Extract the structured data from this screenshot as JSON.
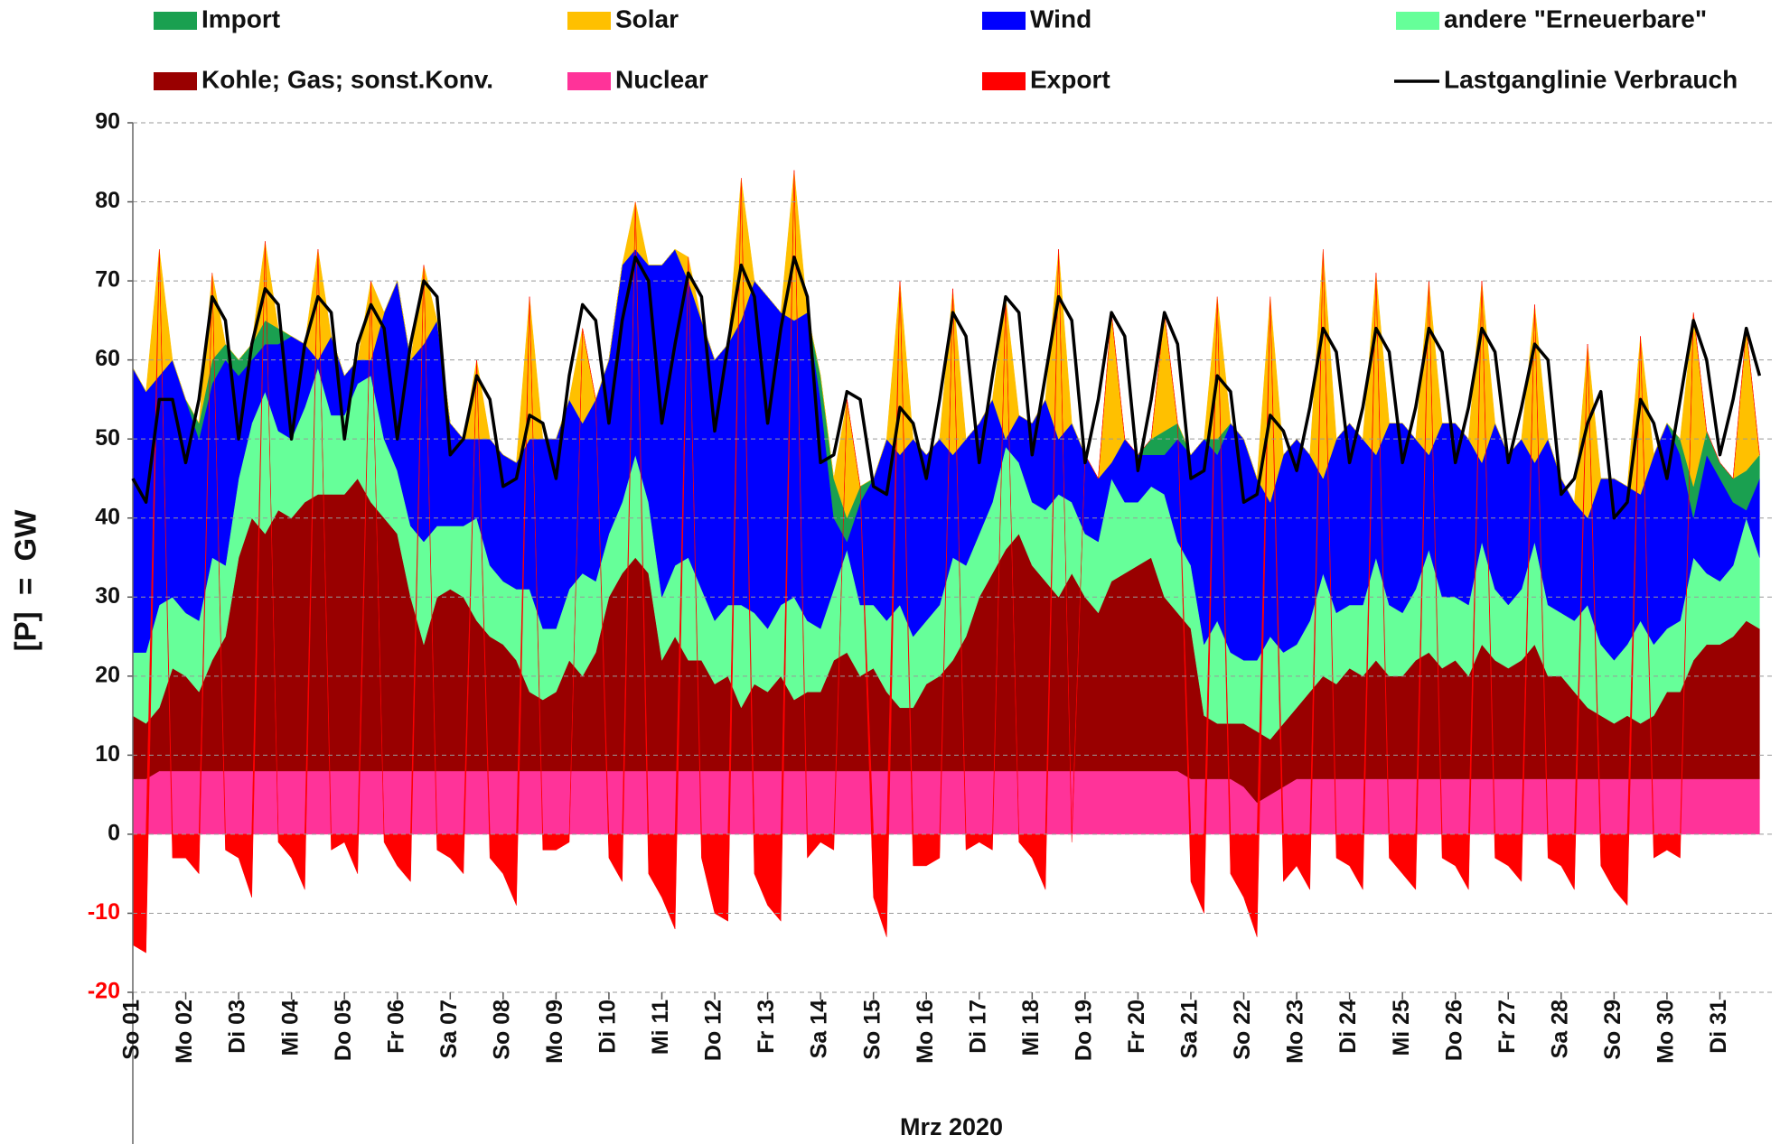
{
  "chart_data": {
    "type": "area",
    "x_label": "Mrz 2020",
    "y_label": "[P]  =  GW",
    "ylim": [
      -20,
      90
    ],
    "yticks": [
      -20,
      -10,
      0,
      10,
      20,
      30,
      40,
      50,
      60,
      70,
      80,
      90
    ],
    "grid": true,
    "categories": [
      "So 01",
      null,
      null,
      null,
      "Mo 02",
      null,
      null,
      null,
      "Di 03",
      null,
      null,
      null,
      "Mi 04",
      null,
      null,
      null,
      "Do 05",
      null,
      null,
      null,
      "Fr 06",
      null,
      null,
      null,
      "Sa 07",
      null,
      null,
      null,
      "So 08",
      null,
      null,
      null,
      "Mo 09",
      null,
      null,
      null,
      "Di 10",
      null,
      null,
      null,
      "Mi 11",
      null,
      null,
      null,
      "Do 12",
      null,
      null,
      null,
      "Fr 13",
      null,
      null,
      null,
      "Sa 14",
      null,
      null,
      null,
      "So 15",
      null,
      null,
      null,
      "Mo 16",
      null,
      null,
      null,
      "Di 17",
      null,
      null,
      null,
      "Mi 18",
      null,
      null,
      null,
      "Do 19",
      null,
      null,
      null,
      "Fr 20",
      null,
      null,
      null,
      "Sa 21",
      null,
      null,
      null,
      "So 22",
      null,
      null,
      null,
      "Mo 23",
      null,
      null,
      null,
      "Di 24",
      null,
      null,
      null,
      "Mi 25",
      null,
      null,
      null,
      "Do 26",
      null,
      null,
      null,
      "Fr 27",
      null,
      null,
      null,
      "Sa 28",
      null,
      null,
      null,
      "So 29",
      null,
      null,
      null,
      "Mo 30",
      null,
      null,
      null,
      "Di 31",
      null,
      null,
      null
    ],
    "series": [
      {
        "name": "Nuclear",
        "color": "#ff3399",
        "values": [
          7,
          7,
          8,
          8,
          8,
          8,
          8,
          8,
          8,
          8,
          8,
          8,
          8,
          8,
          8,
          8,
          8,
          8,
          8,
          8,
          8,
          8,
          8,
          8,
          8,
          8,
          8,
          8,
          8,
          8,
          8,
          8,
          8,
          8,
          8,
          8,
          8,
          8,
          8,
          8,
          8,
          8,
          8,
          8,
          8,
          8,
          8,
          8,
          8,
          8,
          8,
          8,
          8,
          8,
          8,
          8,
          8,
          8,
          8,
          8,
          8,
          8,
          8,
          8,
          8,
          8,
          8,
          8,
          8,
          8,
          8,
          8,
          8,
          8,
          8,
          8,
          8,
          8,
          8,
          8,
          7,
          7,
          7,
          7,
          6,
          4,
          5,
          6,
          7,
          7,
          7,
          7,
          7,
          7,
          7,
          7,
          7,
          7,
          7,
          7,
          7,
          7,
          7,
          7,
          7,
          7,
          7,
          7,
          7,
          7,
          7,
          7,
          7,
          7,
          7,
          7,
          7,
          7,
          7,
          7,
          7,
          7,
          7,
          7
        ]
      },
      {
        "name": "Kohle; Gas; sonst.Konv.",
        "color": "#990000",
        "values": [
          8,
          7,
          8,
          13,
          12,
          10,
          14,
          17,
          27,
          32,
          30,
          33,
          32,
          34,
          35,
          35,
          35,
          37,
          34,
          32,
          30,
          22,
          16,
          22,
          23,
          22,
          19,
          17,
          16,
          14,
          10,
          9,
          10,
          14,
          12,
          15,
          22,
          25,
          27,
          25,
          14,
          17,
          14,
          14,
          11,
          12,
          8,
          11,
          10,
          12,
          9,
          10,
          10,
          14,
          15,
          12,
          13,
          10,
          8,
          8,
          11,
          12,
          14,
          17,
          22,
          25,
          28,
          30,
          26,
          24,
          22,
          25,
          22,
          20,
          24,
          25,
          26,
          27,
          22,
          20,
          19,
          8,
          7,
          7,
          8,
          9,
          7,
          8,
          9,
          11,
          13,
          12,
          14,
          13,
          15,
          13,
          13,
          15,
          16,
          14,
          15,
          13,
          17,
          15,
          14,
          15,
          17,
          13,
          13,
          11,
          9,
          8,
          7,
          8,
          7,
          8,
          11,
          11,
          15,
          17,
          17,
          18,
          20,
          19
        ]
      },
      {
        "name": "andere \"Erneuerbare\"",
        "color": "#66ff99",
        "values": [
          8,
          9,
          13,
          9,
          8,
          9,
          13,
          9,
          10,
          12,
          18,
          10,
          10,
          12,
          16,
          10,
          10,
          12,
          16,
          10,
          8,
          9,
          13,
          9,
          8,
          9,
          13,
          9,
          8,
          9,
          13,
          9,
          8,
          9,
          13,
          9,
          8,
          9,
          13,
          9,
          8,
          9,
          13,
          9,
          8,
          9,
          13,
          9,
          8,
          9,
          13,
          9,
          8,
          9,
          13,
          9,
          8,
          9,
          13,
          9,
          8,
          9,
          13,
          9,
          8,
          9,
          13,
          9,
          8,
          9,
          13,
          9,
          8,
          9,
          13,
          9,
          8,
          9,
          13,
          9,
          8,
          9,
          13,
          9,
          8,
          9,
          13,
          9,
          8,
          9,
          13,
          9,
          8,
          9,
          13,
          9,
          8,
          9,
          13,
          9,
          8,
          9,
          13,
          9,
          8,
          9,
          13,
          9,
          8,
          9,
          13,
          9,
          8,
          9,
          13,
          9,
          8,
          9,
          13,
          9,
          8,
          9,
          13,
          9
        ]
      },
      {
        "name": "Wind",
        "color": "#0000ff",
        "values": [
          36,
          33,
          29,
          30,
          27,
          23,
          22,
          26,
          13,
          8,
          6,
          11,
          13,
          8,
          1,
          10,
          5,
          3,
          2,
          16,
          24,
          21,
          25,
          26,
          13,
          11,
          10,
          16,
          16,
          16,
          19,
          24,
          24,
          24,
          19,
          23,
          22,
          30,
          26,
          30,
          42,
          40,
          35,
          34,
          33,
          33,
          36,
          42,
          42,
          37,
          35,
          39,
          29,
          9,
          1,
          13,
          16,
          23,
          19,
          25,
          21,
          21,
          13,
          16,
          14,
          13,
          1,
          6,
          10,
          14,
          7,
          10,
          10,
          8,
          2,
          8,
          6,
          4,
          5,
          13,
          14,
          26,
          21,
          29,
          28,
          23,
          17,
          25,
          26,
          21,
          12,
          22,
          23,
          21,
          13,
          23,
          24,
          19,
          12,
          22,
          22,
          21,
          10,
          21,
          19,
          19,
          10,
          21,
          17,
          15,
          11,
          21,
          23,
          20,
          16,
          24,
          26,
          21,
          5,
          15,
          13,
          8,
          1,
          10
        ]
      },
      {
        "name": "Import",
        "color": "#1aa050",
        "values": [
          0,
          0,
          0,
          0,
          0,
          2,
          3,
          2,
          2,
          2,
          3,
          2,
          0,
          0,
          0,
          0,
          0,
          0,
          0,
          0,
          0,
          0,
          0,
          0,
          0,
          0,
          0,
          0,
          0,
          0,
          0,
          0,
          0,
          0,
          0,
          0,
          0,
          0,
          0,
          0,
          0,
          0,
          0,
          0,
          0,
          0,
          0,
          0,
          0,
          0,
          0,
          0,
          3,
          5,
          3,
          2,
          0,
          0,
          0,
          0,
          0,
          0,
          0,
          0,
          0,
          0,
          0,
          0,
          0,
          0,
          0,
          0,
          0,
          0,
          0,
          0,
          0,
          2,
          3,
          2,
          0,
          0,
          2,
          0,
          0,
          0,
          0,
          0,
          0,
          0,
          0,
          0,
          0,
          0,
          0,
          0,
          0,
          0,
          0,
          0,
          0,
          0,
          0,
          0,
          0,
          0,
          0,
          0,
          0,
          0,
          0,
          0,
          0,
          0,
          0,
          0,
          0,
          2,
          4,
          3,
          2,
          3,
          5,
          3
        ]
      },
      {
        "name": "Solar",
        "color": "#ffc000",
        "values": [
          0,
          0,
          16,
          0,
          0,
          0,
          11,
          0,
          0,
          0,
          10,
          0,
          0,
          0,
          14,
          0,
          0,
          0,
          10,
          0,
          0,
          0,
          10,
          0,
          0,
          0,
          10,
          0,
          0,
          0,
          18,
          0,
          0,
          0,
          12,
          0,
          0,
          0,
          6,
          0,
          0,
          0,
          3,
          0,
          0,
          0,
          18,
          0,
          0,
          0,
          19,
          0,
          0,
          0,
          15,
          0,
          0,
          0,
          22,
          0,
          0,
          0,
          21,
          0,
          0,
          0,
          18,
          0,
          0,
          0,
          24,
          0,
          0,
          0,
          19,
          0,
          0,
          0,
          15,
          0,
          0,
          0,
          18,
          0,
          0,
          0,
          26,
          0,
          0,
          0,
          29,
          0,
          0,
          0,
          23,
          0,
          0,
          0,
          22,
          0,
          0,
          0,
          23,
          0,
          0,
          0,
          20,
          0,
          0,
          0,
          22,
          0,
          0,
          0,
          20,
          0,
          0,
          0,
          22,
          0,
          0,
          0,
          18,
          0
        ]
      },
      {
        "name": "Export",
        "color": "#ff0000",
        "values": [
          -14,
          -15,
          0,
          -3,
          -3,
          -5,
          0,
          -2,
          -3,
          -8,
          0,
          -1,
          -3,
          -7,
          0,
          -2,
          -1,
          -5,
          0,
          -1,
          -4,
          -6,
          0,
          -2,
          -3,
          -5,
          0,
          -3,
          -5,
          -9,
          0,
          -2,
          -2,
          -1,
          0,
          0,
          -3,
          -6,
          0,
          -5,
          -8,
          -12,
          0,
          -3,
          -10,
          -11,
          0,
          -5,
          -9,
          -11,
          0,
          -3,
          -1,
          -2,
          0,
          0,
          -8,
          -13,
          0,
          -4,
          -4,
          -3,
          0,
          -2,
          -1,
          -2,
          0,
          -1,
          -3,
          -7,
          0,
          -1,
          0,
          0,
          0,
          0,
          0,
          0,
          0,
          0,
          -6,
          -10,
          0,
          -5,
          -8,
          -13,
          0,
          -6,
          -4,
          -7,
          0,
          -3,
          -4,
          -7,
          0,
          -3,
          -5,
          -7,
          0,
          -3,
          -4,
          -7,
          0,
          -3,
          -4,
          -6,
          0,
          -3,
          -4,
          -7,
          0,
          -4,
          -7,
          -9,
          0,
          -3,
          -2,
          -3,
          0,
          0,
          0,
          0,
          0,
          0
        ]
      },
      {
        "name": "Lastganglinie Verbrauch",
        "color": "#000000",
        "type": "line",
        "values": [
          45,
          42,
          55,
          55,
          47,
          55,
          68,
          65,
          50,
          62,
          69,
          67,
          50,
          62,
          68,
          66,
          50,
          62,
          67,
          64,
          50,
          62,
          70,
          68,
          48,
          50,
          58,
          55,
          44,
          45,
          53,
          52,
          45,
          58,
          67,
          65,
          52,
          65,
          73,
          70,
          52,
          62,
          71,
          68,
          51,
          62,
          72,
          68,
          52,
          64,
          73,
          68,
          47,
          48,
          56,
          55,
          44,
          43,
          54,
          52,
          45,
          55,
          66,
          63,
          47,
          58,
          68,
          66,
          48,
          58,
          68,
          65,
          47,
          55,
          66,
          63,
          46,
          55,
          66,
          62,
          45,
          46,
          58,
          56,
          42,
          43,
          53,
          51,
          46,
          54,
          64,
          61,
          47,
          54,
          64,
          61,
          47,
          54,
          64,
          61,
          47,
          54,
          64,
          61,
          47,
          54,
          62,
          60,
          43,
          45,
          52,
          56,
          40,
          42,
          55,
          52,
          45,
          55,
          65,
          60,
          48,
          55,
          64,
          58
        ]
      }
    ]
  }
}
